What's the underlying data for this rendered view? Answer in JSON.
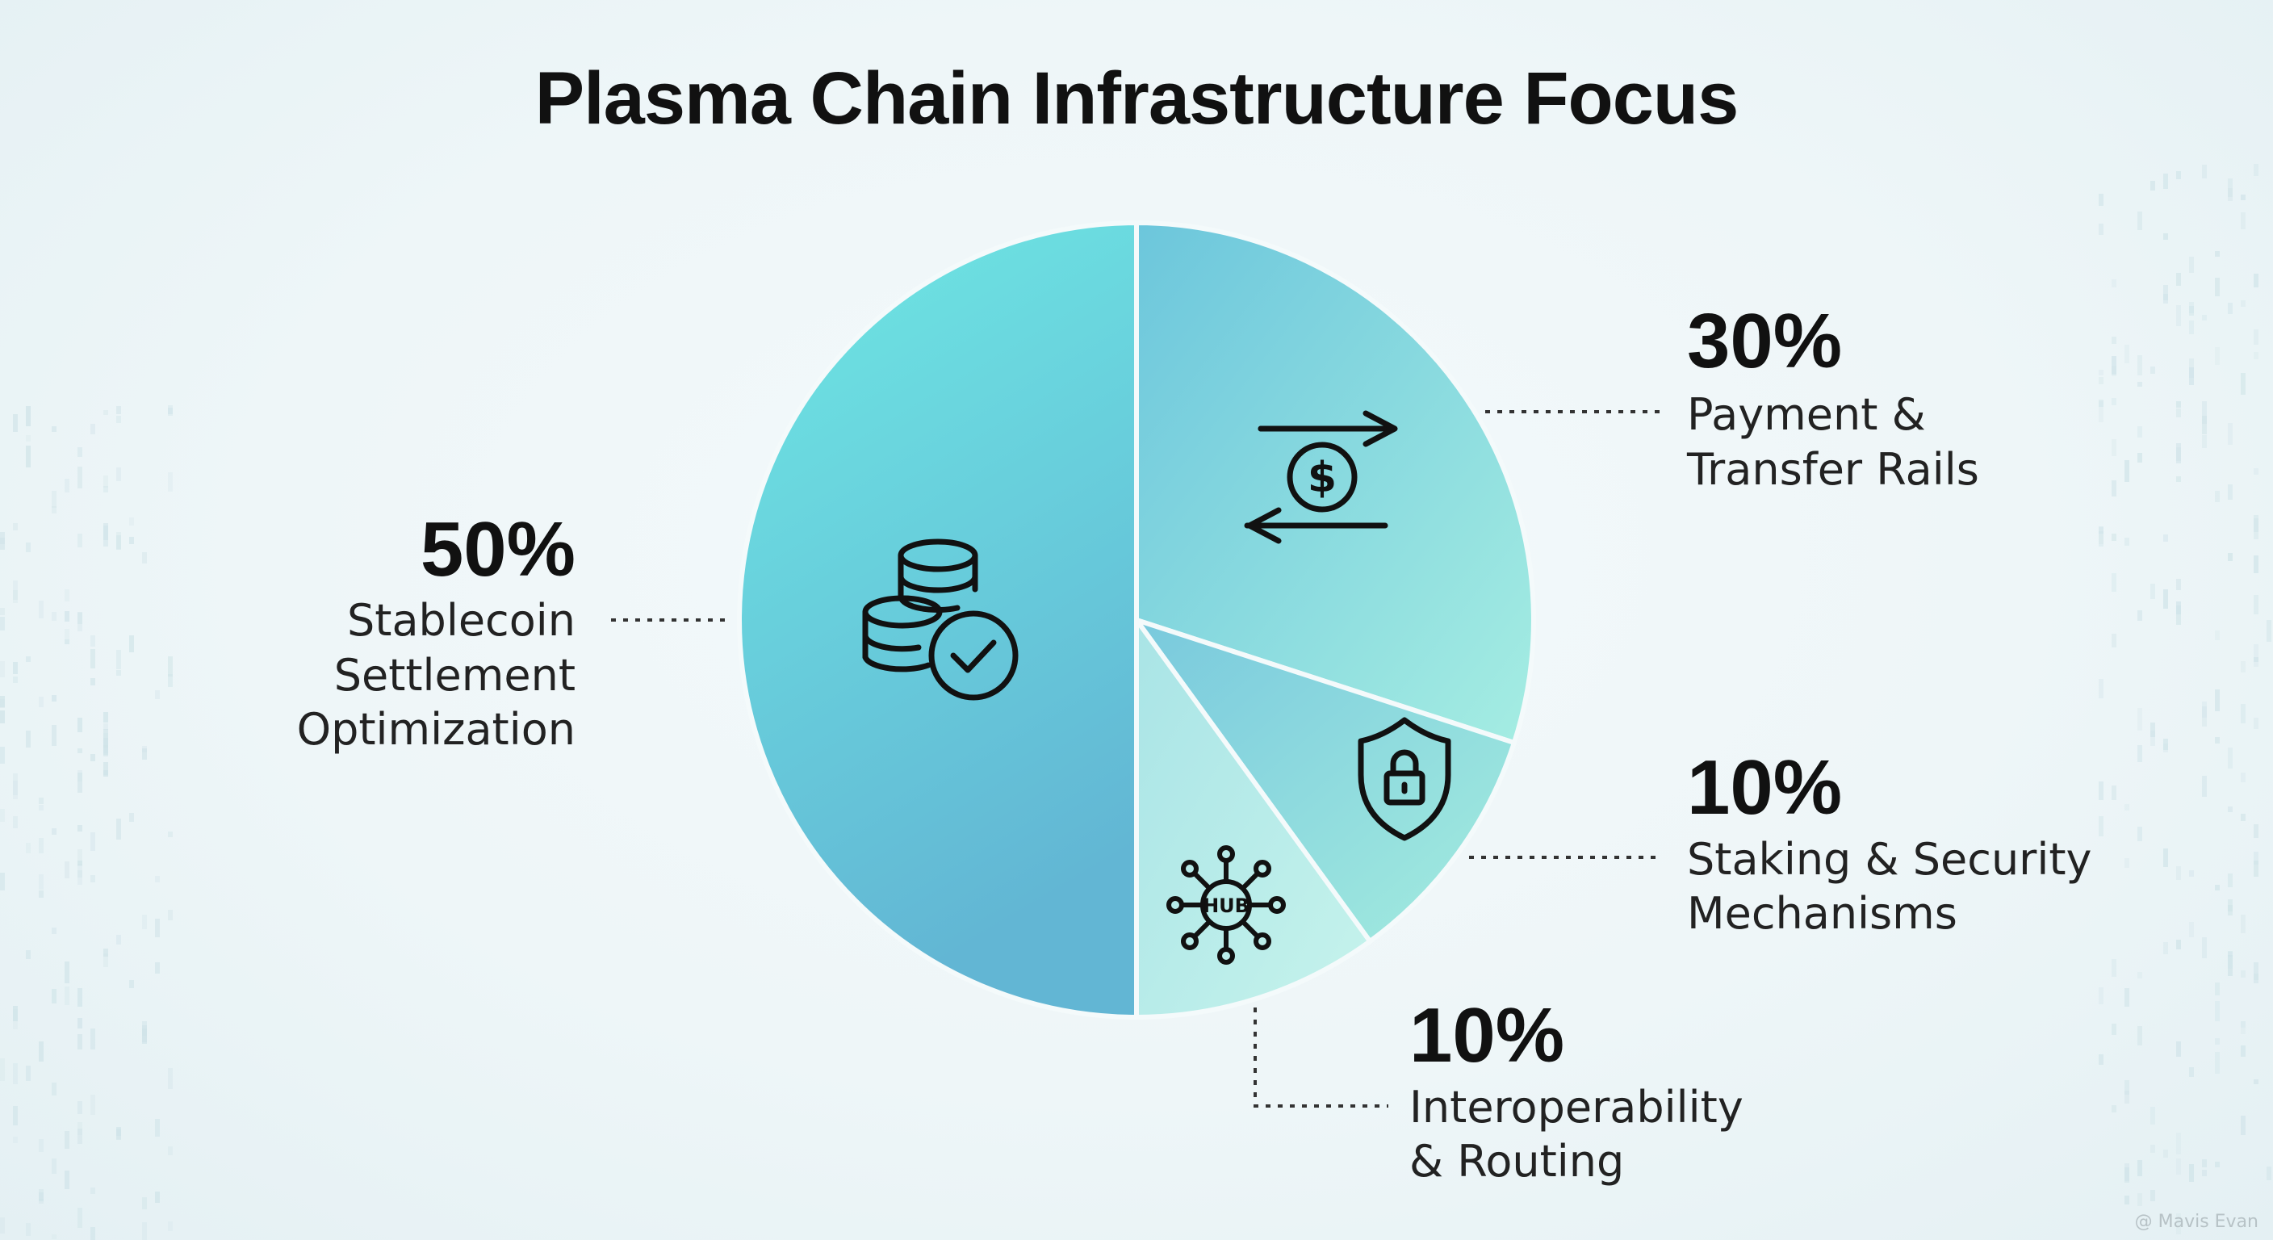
{
  "title": "Plasma Chain Infrastructure Focus",
  "watermark": "@ Mavis Evan",
  "chart_data": {
    "type": "pie",
    "title": "Plasma Chain Infrastructure Focus",
    "slices": [
      {
        "label": "Stablecoin Settlement Optimization",
        "lines": [
          "Stablecoin",
          "Settlement",
          "Optimization"
        ],
        "value": 50,
        "pct_text": "50%",
        "icon": "coins-check-icon",
        "color": "#66d2dc"
      },
      {
        "label": "Payment & Transfer Rails",
        "lines": [
          "Payment &",
          "Transfer Rails"
        ],
        "value": 30,
        "pct_text": "30%",
        "icon": "dollar-transfer-arrows-icon",
        "color": "#86dbe0"
      },
      {
        "label": "Staking & Security Mechanisms",
        "lines": [
          "Staking & Security",
          "Mechanisms"
        ],
        "value": 10,
        "pct_text": "10%",
        "icon": "shield-lock-icon",
        "color": "#8ce1df"
      },
      {
        "label": "Interoperability & Routing",
        "lines": [
          "Interoperability",
          "& Routing"
        ],
        "value": 10,
        "pct_text": "10%",
        "icon": "hub-network-icon",
        "color": "#b4ecea"
      }
    ],
    "hub_text": "HUB",
    "legend": "none"
  }
}
